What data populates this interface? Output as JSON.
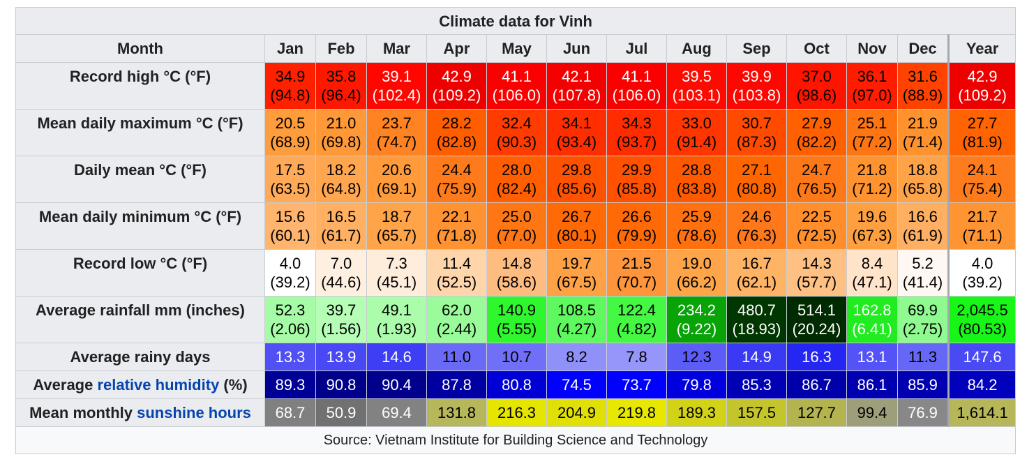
{
  "title": "Climate data for Vinh",
  "header": {
    "label": "Month",
    "months": [
      "Jan",
      "Feb",
      "Mar",
      "Apr",
      "May",
      "Jun",
      "Jul",
      "Aug",
      "Sep",
      "Oct",
      "Nov",
      "Dec"
    ],
    "year": "Year"
  },
  "rows": [
    {
      "label": "Record high °C (°F)",
      "type": "dual",
      "c": [
        "34.9",
        "35.8",
        "39.1",
        "42.9",
        "41.1",
        "42.1",
        "41.1",
        "39.5",
        "39.9",
        "37.0",
        "36.1",
        "31.6",
        "42.9"
      ],
      "f": [
        "(94.8)",
        "(96.4)",
        "(102.4)",
        "(109.2)",
        "(106.0)",
        "(107.8)",
        "(106.0)",
        "(103.1)",
        "(103.8)",
        "(98.6)",
        "(97.0)",
        "(88.9)",
        "(109.2)"
      ],
      "bg": [
        "#ff2000",
        "#ff1800",
        "#ff0600",
        "#ee0000",
        "#fa0000",
        "#f50000",
        "#fa0000",
        "#ff0a00",
        "#ff0600",
        "#ff1400",
        "#ff1c00",
        "#ff4200",
        "#ee0000"
      ],
      "fg": [
        "#000000",
        "#000000",
        "#ffffff",
        "#ffffff",
        "#ffffff",
        "#ffffff",
        "#ffffff",
        "#ffffff",
        "#ffffff",
        "#000000",
        "#000000",
        "#000000",
        "#ffffff"
      ]
    },
    {
      "label": "Mean daily maximum °C (°F)",
      "type": "dual",
      "c": [
        "20.5",
        "21.0",
        "23.7",
        "28.2",
        "32.4",
        "34.1",
        "34.3",
        "33.0",
        "30.7",
        "27.9",
        "25.1",
        "21.9",
        "27.7"
      ],
      "f": [
        "(68.9)",
        "(69.8)",
        "(74.7)",
        "(82.8)",
        "(90.3)",
        "(93.4)",
        "(93.7)",
        "(91.4)",
        "(87.3)",
        "(82.2)",
        "(77.2)",
        "(71.4)",
        "(81.9)"
      ],
      "bg": [
        "#ff9c3c",
        "#ff9836",
        "#ff8322",
        "#ff5e00",
        "#ff3c00",
        "#ff2e00",
        "#ff2c00",
        "#ff3600",
        "#ff4a00",
        "#ff6000",
        "#ff7512",
        "#ff922d",
        "#ff6302"
      ],
      "fg": [
        "#000000",
        "#000000",
        "#000000",
        "#000000",
        "#000000",
        "#000000",
        "#000000",
        "#000000",
        "#000000",
        "#000000",
        "#000000",
        "#000000",
        "#000000"
      ]
    },
    {
      "label": "Daily mean °C (°F)",
      "type": "dual",
      "c": [
        "17.5",
        "18.2",
        "20.6",
        "24.4",
        "28.0",
        "29.8",
        "29.9",
        "28.8",
        "27.1",
        "24.7",
        "21.8",
        "18.8",
        "24.1"
      ],
      "f": [
        "(63.5)",
        "(64.8)",
        "(69.1)",
        "(75.9)",
        "(82.4)",
        "(85.6)",
        "(85.8)",
        "(83.8)",
        "(80.8)",
        "(76.5)",
        "(71.2)",
        "(65.8)",
        "(75.4)"
      ],
      "bg": [
        "#ffaa58",
        "#ffa64f",
        "#ff9b3a",
        "#ff7a1a",
        "#ff5f00",
        "#ff5200",
        "#ff5100",
        "#ff5900",
        "#ff6600",
        "#ff7817",
        "#ff932f",
        "#ffa348",
        "#ff7c1c"
      ],
      "fg": [
        "#000000",
        "#000000",
        "#000000",
        "#000000",
        "#000000",
        "#000000",
        "#000000",
        "#000000",
        "#000000",
        "#000000",
        "#000000",
        "#000000",
        "#000000"
      ]
    },
    {
      "label": "Mean daily minimum °C (°F)",
      "type": "dual",
      "c": [
        "15.6",
        "16.5",
        "18.7",
        "22.1",
        "25.0",
        "26.7",
        "26.6",
        "25.9",
        "24.6",
        "22.5",
        "19.6",
        "16.6",
        "21.7"
      ],
      "f": [
        "(60.1)",
        "(61.7)",
        "(65.7)",
        "(71.8)",
        "(77.0)",
        "(80.1)",
        "(79.9)",
        "(78.6)",
        "(76.3)",
        "(72.5)",
        "(67.3)",
        "(61.9)",
        "(71.1)"
      ],
      "bg": [
        "#ffb56e",
        "#ffb062",
        "#ffa449",
        "#ff9231",
        "#ff7715",
        "#ff6906",
        "#ff6a07",
        "#ff700e",
        "#ff7819",
        "#ff8e2b",
        "#ffa040",
        "#ffaf61",
        "#ff9433"
      ],
      "fg": [
        "#000000",
        "#000000",
        "#000000",
        "#000000",
        "#000000",
        "#000000",
        "#000000",
        "#000000",
        "#000000",
        "#000000",
        "#000000",
        "#000000",
        "#000000"
      ]
    },
    {
      "label": "Record low °C (°F)",
      "type": "dual",
      "c": [
        "4.0",
        "7.0",
        "7.3",
        "11.4",
        "14.8",
        "19.7",
        "21.5",
        "19.0",
        "16.7",
        "14.3",
        "8.4",
        "5.2",
        "4.0"
      ],
      "f": [
        "(39.2)",
        "(44.6)",
        "(45.1)",
        "(52.5)",
        "(58.6)",
        "(67.5)",
        "(70.7)",
        "(66.2)",
        "(62.1)",
        "(57.7)",
        "(47.1)",
        "(41.4)",
        "(39.2)"
      ],
      "bg": [
        "#ffffff",
        "#ffefe0",
        "#ffeddc",
        "#ffd5ac",
        "#ffbc80",
        "#ffa246",
        "#ff953a",
        "#ffa549",
        "#ffb364",
        "#ffc084",
        "#ffe4c9",
        "#fff8f2",
        "#ffffff"
      ],
      "fg": [
        "#000000",
        "#000000",
        "#000000",
        "#000000",
        "#000000",
        "#000000",
        "#000000",
        "#000000",
        "#000000",
        "#000000",
        "#000000",
        "#000000",
        "#000000"
      ]
    },
    {
      "label": "Average rainfall mm (inches)",
      "type": "dual",
      "c": [
        "52.3",
        "39.7",
        "49.1",
        "62.0",
        "140.9",
        "108.5",
        "122.4",
        "234.2",
        "480.7",
        "514.1",
        "162.8",
        "69.9",
        "2,045.5"
      ],
      "f": [
        "(2.06)",
        "(1.56)",
        "(1.93)",
        "(2.44)",
        "(5.55)",
        "(4.27)",
        "(4.82)",
        "(9.22)",
        "(18.93)",
        "(20.24)",
        "(6.41)",
        "(2.75)",
        "(80.53)"
      ],
      "bg": [
        "#a6fca6",
        "#b6fdb6",
        "#abfdab",
        "#99fb99",
        "#2ef72e",
        "#5ef95e",
        "#44f844",
        "#07a307",
        "#003600",
        "#002a00",
        "#21ec21",
        "#8ffa8f",
        "#17f617"
      ],
      "fg": [
        "#000000",
        "#000000",
        "#000000",
        "#000000",
        "#000000",
        "#000000",
        "#000000",
        "#ffffff",
        "#ffffff",
        "#ffffff",
        "#ffffff",
        "#000000",
        "#000000"
      ]
    },
    {
      "label": "Average rainy days",
      "type": "single",
      "v": [
        "13.3",
        "13.9",
        "14.6",
        "11.0",
        "10.7",
        "8.2",
        "7.8",
        "12.3",
        "14.9",
        "16.3",
        "13.1",
        "11.3",
        "147.6"
      ],
      "bg": [
        "#5050f5",
        "#4848f5",
        "#3e3ef5",
        "#6a6af7",
        "#6f6ff7",
        "#9090f9",
        "#9595fa",
        "#5c5cf6",
        "#3a3af4",
        "#2626f2",
        "#5353f6",
        "#6767f7",
        "#4a4af5"
      ],
      "fg": [
        "#ffffff",
        "#ffffff",
        "#ffffff",
        "#000000",
        "#000000",
        "#000000",
        "#000000",
        "#000000",
        "#ffffff",
        "#ffffff",
        "#ffffff",
        "#000000",
        "#ffffff"
      ]
    },
    {
      "label_parts": [
        "Average ",
        "relative humidity",
        " (%)"
      ],
      "type": "single-link",
      "v": [
        "89.3",
        "90.8",
        "90.4",
        "87.8",
        "80.8",
        "74.5",
        "73.7",
        "79.8",
        "85.3",
        "86.7",
        "86.1",
        "85.9",
        "84.2"
      ],
      "bg": [
        "#000096",
        "#00008a",
        "#00008d",
        "#0000a2",
        "#0000d6",
        "#0000fe",
        "#0000ff",
        "#0000de",
        "#0000b5",
        "#0000ab",
        "#0000b0",
        "#0000b1",
        "#0000bd"
      ],
      "fg": [
        "#ffffff",
        "#ffffff",
        "#ffffff",
        "#ffffff",
        "#ffffff",
        "#ffffff",
        "#ffffff",
        "#ffffff",
        "#ffffff",
        "#ffffff",
        "#ffffff",
        "#ffffff",
        "#ffffff"
      ]
    },
    {
      "label_parts": [
        "Mean monthly ",
        "sunshine hours",
        ""
      ],
      "type": "single-link",
      "v": [
        "68.7",
        "50.9",
        "69.4",
        "131.8",
        "216.3",
        "204.9",
        "219.8",
        "189.3",
        "157.5",
        "127.7",
        "99.4",
        "76.9",
        "1,614.1"
      ],
      "bg": [
        "#808080",
        "#717171",
        "#828282",
        "#b6b65b",
        "#e5e500",
        "#e0e007",
        "#e7e700",
        "#d2d219",
        "#c4c42d",
        "#b3b34f",
        "#9e9e7b",
        "#888888",
        "#b7b759"
      ],
      "fg": [
        "#ffffff",
        "#ffffff",
        "#ffffff",
        "#000000",
        "#000000",
        "#000000",
        "#000000",
        "#000000",
        "#000000",
        "#000000",
        "#000000",
        "#ffffff",
        "#000000"
      ]
    }
  ],
  "source": "Source: Vietnam Institute for Building Science and Technology"
}
